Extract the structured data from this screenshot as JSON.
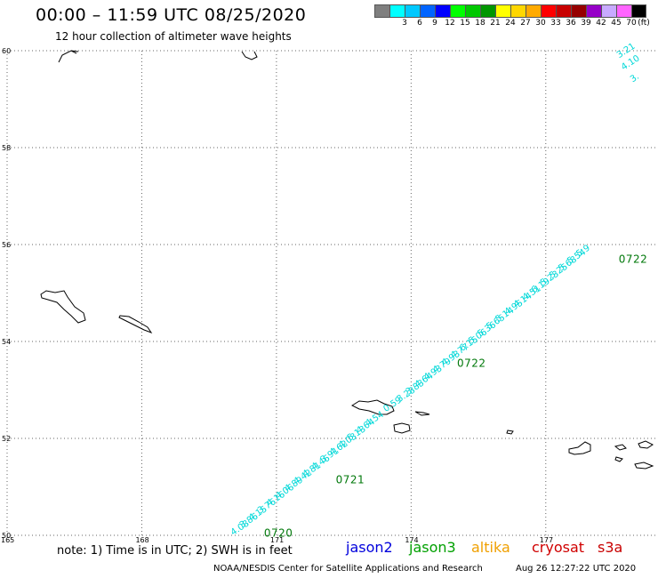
{
  "header": {
    "title": "00:00 – 11:59 UTC 08/25/2020",
    "subtitle": "12 hour collection of altimeter wave heights"
  },
  "legend": {
    "unit": "(ft)",
    "items": [
      {
        "label": "",
        "color": "#7f7f7f"
      },
      {
        "label": "3",
        "color": "#00ffff"
      },
      {
        "label": "6",
        "color": "#00c8ff"
      },
      {
        "label": "9",
        "color": "#0064ff"
      },
      {
        "label": "12",
        "color": "#0000ff"
      },
      {
        "label": "15",
        "color": "#00ff00"
      },
      {
        "label": "18",
        "color": "#00c800"
      },
      {
        "label": "21",
        "color": "#009600"
      },
      {
        "label": "24",
        "color": "#ffff00"
      },
      {
        "label": "27",
        "color": "#ffd700"
      },
      {
        "label": "30",
        "color": "#ffaa00"
      },
      {
        "label": "33",
        "color": "#ff0000"
      },
      {
        "label": "36",
        "color": "#c80000"
      },
      {
        "label": "39",
        "color": "#960000"
      },
      {
        "label": "42",
        "color": "#9600c8"
      },
      {
        "label": "45",
        "color": "#c8aaff"
      },
      {
        "label": "70",
        "color": "#ff64ff"
      },
      {
        "label": "",
        "color": "#000000"
      }
    ]
  },
  "map": {
    "lat_range": [
      50,
      60
    ],
    "lon_range": [
      165,
      179.5
    ],
    "lat_ticks": [
      "60",
      "58",
      "56",
      "54",
      "52",
      "50"
    ],
    "lon_ticks": [
      "165",
      "168",
      "171",
      "174",
      "177"
    ]
  },
  "tracks": [
    {
      "satellite": "jason3",
      "color": "#00d8d8",
      "points": [
        {
          "lat": 50.1,
          "lon": 170.1,
          "swh": "4.08"
        },
        {
          "lat": 50.25,
          "lon": 170.3,
          "swh": "3.86"
        },
        {
          "lat": 50.4,
          "lon": 170.5,
          "swh": "4.15"
        },
        {
          "lat": 50.55,
          "lon": 170.7,
          "swh": "3.76"
        },
        {
          "lat": 50.7,
          "lon": 170.9,
          "swh": "4.16"
        },
        {
          "lat": 50.85,
          "lon": 171.1,
          "swh": "4.06"
        },
        {
          "lat": 51.0,
          "lon": 171.3,
          "swh": "4.89"
        },
        {
          "lat": 51.15,
          "lon": 171.5,
          "swh": "4.42"
        },
        {
          "lat": 51.3,
          "lon": 171.7,
          "swh": "4.81"
        },
        {
          "lat": 51.45,
          "lon": 171.9,
          "swh": "4.46"
        },
        {
          "lat": 51.6,
          "lon": 172.1,
          "swh": "3.91"
        },
        {
          "lat": 51.75,
          "lon": 172.3,
          "swh": "4.62"
        },
        {
          "lat": 51.9,
          "lon": 172.5,
          "swh": "4.03"
        },
        {
          "lat": 52.05,
          "lon": 172.7,
          "swh": "5.13"
        },
        {
          "lat": 52.2,
          "lon": 172.9,
          "swh": "4.64"
        },
        {
          "lat": 52.35,
          "lon": 173.1,
          "swh": "4.54"
        },
        {
          "lat": 52.85,
          "lon": 173.8,
          "swh": "3.28"
        },
        {
          "lat": 53.0,
          "lon": 174.0,
          "swh": "3.83"
        },
        {
          "lat": 53.15,
          "lon": 174.2,
          "swh": "4.64"
        },
        {
          "lat": 53.3,
          "lon": 174.4,
          "swh": "4.93"
        },
        {
          "lat": 53.45,
          "lon": 174.6,
          "swh": "4.79"
        },
        {
          "lat": 53.6,
          "lon": 174.8,
          "swh": "4.93"
        },
        {
          "lat": 53.75,
          "lon": 175.0,
          "swh": "4.77"
        },
        {
          "lat": 53.9,
          "lon": 175.2,
          "swh": "6.15"
        },
        {
          "lat": 54.05,
          "lon": 175.4,
          "swh": "5.06"
        },
        {
          "lat": 54.2,
          "lon": 175.6,
          "swh": "5.36"
        },
        {
          "lat": 54.35,
          "lon": 175.8,
          "swh": "5.65"
        },
        {
          "lat": 54.5,
          "lon": 176.0,
          "swh": "5.14"
        },
        {
          "lat": 54.65,
          "lon": 176.2,
          "swh": "4.95"
        },
        {
          "lat": 54.8,
          "lon": 176.4,
          "swh": "4.14"
        },
        {
          "lat": 54.95,
          "lon": 176.6,
          "swh": "4.51"
        },
        {
          "lat": 55.1,
          "lon": 176.8,
          "swh": "6.19"
        },
        {
          "lat": 55.25,
          "lon": 177.0,
          "swh": "5.23"
        },
        {
          "lat": 55.4,
          "lon": 177.2,
          "swh": "5.25"
        },
        {
          "lat": 55.55,
          "lon": 177.4,
          "swh": "5.68"
        },
        {
          "lat": 55.7,
          "lon": 177.6,
          "swh": "5.54"
        },
        {
          "lat": 55.85,
          "lon": 177.8,
          "swh": "5.9"
        },
        {
          "lat": 59.95,
          "lon": 178.7,
          "swh": "3.21"
        },
        {
          "lat": 59.7,
          "lon": 178.8,
          "swh": "4.10"
        },
        {
          "lat": 59.45,
          "lon": 179.0,
          "swh": "3."
        }
      ]
    },
    {
      "satellite": "unflagged",
      "color": "#9a9a9a",
      "points": [
        {
          "lat": 52.65,
          "lon": 173.5,
          "swh": "0.59"
        }
      ]
    }
  ],
  "time_labels": [
    {
      "text": "0720",
      "lat": 50.05,
      "lon": 171.0
    },
    {
      "text": "0721",
      "lat": 51.15,
      "lon": 172.6
    },
    {
      "text": "0722",
      "lat": 53.55,
      "lon": 175.3
    },
    {
      "text": "0722",
      "lat": 55.7,
      "lon": 178.9
    }
  ],
  "footer": {
    "note": "note:  1) Time is in UTC;  2) SWH is in feet",
    "satellites": [
      {
        "name": "jason2",
        "color": "#0000dc"
      },
      {
        "name": "jason3",
        "color": "#00a000"
      },
      {
        "name": "altika",
        "color": "#f0a000"
      },
      {
        "name": "cryosat",
        "color": "#d00000"
      },
      {
        "name": "s3a",
        "color": "#c80000"
      }
    ],
    "credit": "NOAA/NESDIS Center for Satellite Applications and Research",
    "timestamp": "Aug 26 12:27:22 UTC 2020"
  }
}
